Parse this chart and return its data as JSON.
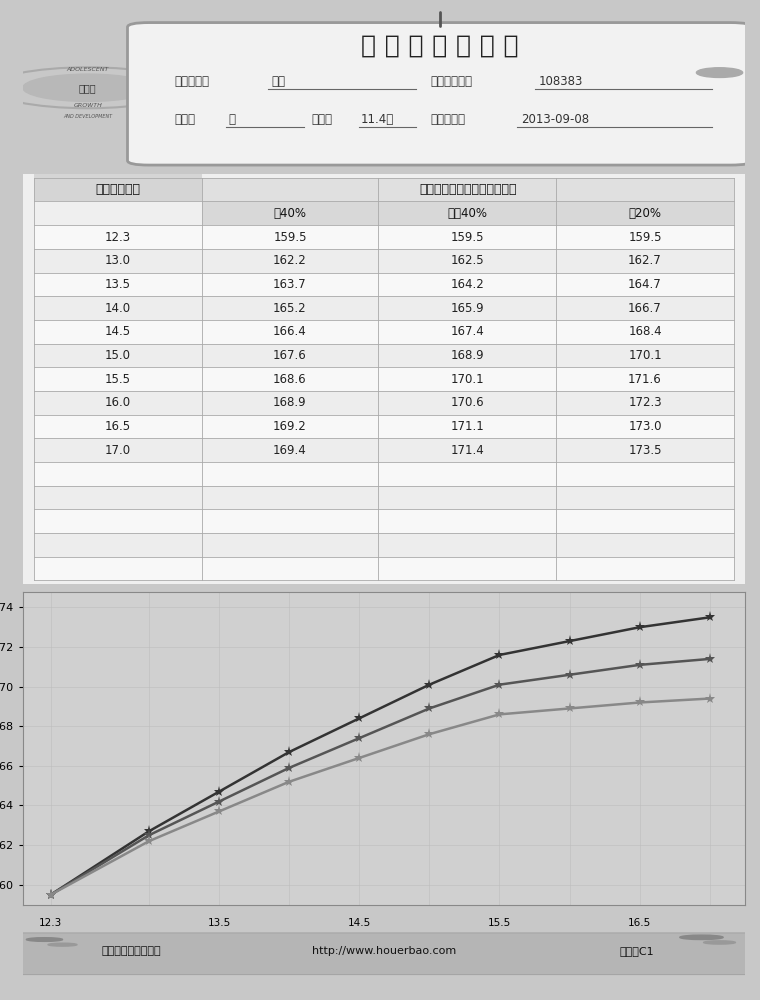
{
  "title": "骨 发 育 测 评 报 告",
  "child_name": "徐菁",
  "card_no": "108383",
  "gender": "女",
  "age": "11.4岁",
  "test_date": "2013-09-08",
  "label_name": "孩子姓名：",
  "label_card": "后儿保卡号：",
  "label_gender": "性别：",
  "label_age": "年龄：",
  "label_date": "测试日期：",
  "table_header_col1": "余骨龄发育年",
  "table_header_col2": "年身高增长实现目标（厘米）",
  "col_labels": [
    "差40%",
    "一般40%",
    "好20%"
  ],
  "ages": [
    12.3,
    13.0,
    13.5,
    14.0,
    14.5,
    15.0,
    15.5,
    16.0,
    16.5,
    17.0
  ],
  "poor40": [
    159.5,
    162.2,
    163.7,
    165.2,
    166.4,
    167.6,
    168.6,
    168.9,
    169.2,
    169.4
  ],
  "avg40": [
    159.5,
    162.5,
    164.2,
    165.9,
    167.4,
    168.9,
    170.1,
    170.6,
    171.1,
    171.4
  ],
  "good20": [
    159.5,
    162.7,
    164.7,
    166.7,
    168.4,
    170.1,
    171.6,
    172.3,
    173.0,
    173.5
  ],
  "extra_rows": 5,
  "bg_color": "#c8c8c8",
  "footer_left": "后儿保优势成长中心",
  "footer_mid": "http://www.houerbao.com",
  "footer_right": "版本：C1",
  "logo_text1": "ADO LESCENT",
  "logo_text2": "后儿保",
  "logo_text3": "GROWTH\nAND DEVELOPMENT"
}
